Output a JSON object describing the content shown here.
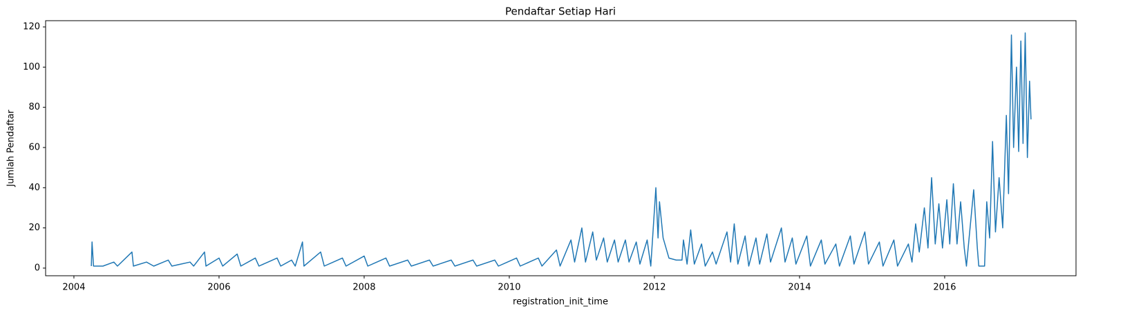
{
  "chart_data": {
    "type": "line",
    "title": "Pendaftar Setiap Hari",
    "xlabel": "registration_init_time",
    "ylabel": "Jumlah Pendaftar",
    "color": "#1f77b4",
    "grid": false,
    "xlim": [
      2003.61,
      2017.81
    ],
    "xticks": [
      2004,
      2006,
      2008,
      2010,
      2012,
      2014,
      2016
    ],
    "ylim": [
      -3.8,
      123.1
    ],
    "yticks": [
      0,
      20,
      40,
      60,
      80,
      100,
      120
    ],
    "x": [
      2004.24,
      2004.25,
      2004.27,
      2004.4,
      2004.55,
      2004.6,
      2004.8,
      2004.82,
      2005.0,
      2005.1,
      2005.3,
      2005.35,
      2005.6,
      2005.65,
      2005.8,
      2005.82,
      2006.0,
      2006.05,
      2006.25,
      2006.3,
      2006.5,
      2006.55,
      2006.8,
      2006.85,
      2007.0,
      2007.05,
      2007.15,
      2007.17,
      2007.4,
      2007.45,
      2007.7,
      2007.75,
      2008.0,
      2008.05,
      2008.3,
      2008.35,
      2008.6,
      2008.65,
      2008.9,
      2008.95,
      2009.2,
      2009.25,
      2009.5,
      2009.55,
      2009.8,
      2009.85,
      2010.1,
      2010.15,
      2010.4,
      2010.45,
      2010.65,
      2010.7,
      2010.85,
      2010.9,
      2011.0,
      2011.05,
      2011.15,
      2011.2,
      2011.3,
      2011.35,
      2011.45,
      2011.5,
      2011.6,
      2011.65,
      2011.75,
      2011.8,
      2011.9,
      2011.95,
      2012.02,
      2012.05,
      2012.07,
      2012.12,
      2012.2,
      2012.3,
      2012.38,
      2012.4,
      2012.45,
      2012.5,
      2012.55,
      2012.65,
      2012.7,
      2012.8,
      2012.85,
      2013.0,
      2013.05,
      2013.1,
      2013.15,
      2013.25,
      2013.3,
      2013.4,
      2013.45,
      2013.55,
      2013.6,
      2013.75,
      2013.8,
      2013.9,
      2013.95,
      2014.1,
      2014.15,
      2014.3,
      2014.35,
      2014.5,
      2014.55,
      2014.7,
      2014.75,
      2014.9,
      2014.95,
      2015.1,
      2015.15,
      2015.3,
      2015.35,
      2015.5,
      2015.55,
      2015.6,
      2015.65,
      2015.72,
      2015.77,
      2015.82,
      2015.87,
      2015.92,
      2015.97,
      2016.03,
      2016.07,
      2016.12,
      2016.17,
      2016.22,
      2016.27,
      2016.3,
      2016.35,
      2016.4,
      2016.45,
      2016.47,
      2016.55,
      2016.58,
      2016.62,
      2016.66,
      2016.7,
      2016.75,
      2016.8,
      2016.85,
      2016.88,
      2016.92,
      2016.95,
      2016.99,
      2017.02,
      2017.05,
      2017.08,
      2017.11,
      2017.14,
      2017.17,
      2017.19
    ],
    "values": [
      1,
      13,
      1,
      1,
      3,
      1,
      8,
      1,
      3,
      1,
      4,
      1,
      3,
      1,
      8,
      1,
      5,
      1,
      7,
      1,
      5,
      1,
      5,
      1,
      4,
      1,
      13,
      1,
      8,
      1,
      5,
      1,
      6,
      1,
      5,
      1,
      4,
      1,
      4,
      1,
      4,
      1,
      4,
      1,
      4,
      1,
      5,
      1,
      5,
      1,
      9,
      1,
      14,
      3,
      20,
      3,
      18,
      4,
      15,
      3,
      14,
      3,
      14,
      3,
      13,
      2,
      14,
      1,
      40,
      15,
      33,
      15,
      5,
      4,
      4,
      14,
      2,
      19,
      2,
      12,
      1,
      8,
      2,
      18,
      3,
      22,
      2,
      16,
      1,
      15,
      2,
      17,
      3,
      20,
      3,
      15,
      2,
      16,
      1,
      14,
      2,
      12,
      1,
      16,
      2,
      18,
      2,
      13,
      1,
      14,
      1,
      12,
      3,
      22,
      8,
      30,
      10,
      45,
      12,
      32,
      10,
      34,
      12,
      42,
      12,
      33,
      10,
      1,
      20,
      39,
      10,
      1,
      1,
      33,
      15,
      63,
      18,
      45,
      20,
      76,
      37,
      116,
      60,
      100,
      58,
      113,
      62,
      117,
      55,
      93,
      74
    ]
  }
}
